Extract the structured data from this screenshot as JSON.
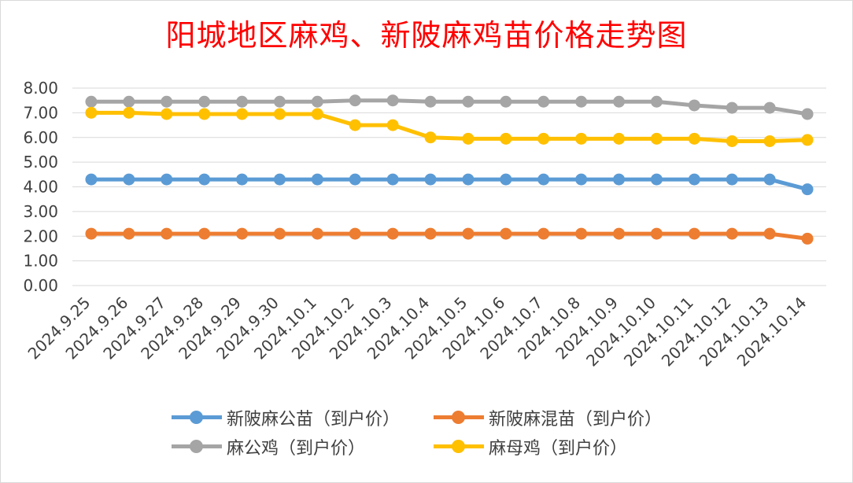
{
  "title": "阳城地区麻鸡、新陂麻鸡苗价格走势图",
  "chart_data": {
    "type": "line",
    "title": "阳城地区麻鸡、新陂麻鸡苗价格走势图",
    "xlabel": "",
    "ylabel": "",
    "ylim": [
      0,
      8
    ],
    "ytick_step": 1,
    "ytick_labels": [
      "0.00",
      "1.00",
      "2.00",
      "3.00",
      "4.00",
      "5.00",
      "6.00",
      "7.00",
      "8.00"
    ],
    "grid": true,
    "legend_position": "bottom",
    "categories": [
      "2024.9.25",
      "2024.9.26",
      "2024.9.27",
      "2024.9.28",
      "2024.9.29",
      "2024.9.30",
      "2024.10.1",
      "2024.10.2",
      "2024.10.3",
      "2024.10.4",
      "2024.10.5",
      "2024.10.6",
      "2024.10.7",
      "2024.10.8",
      "2024.10.9",
      "2024.10.10",
      "2024.10.11",
      "2024.10.12",
      "2024.10.13",
      "2024.10.14"
    ],
    "series": [
      {
        "name": "新陂麻公苗（到户价）",
        "color": "#5b9bd5",
        "values": [
          4.3,
          4.3,
          4.3,
          4.3,
          4.3,
          4.3,
          4.3,
          4.3,
          4.3,
          4.3,
          4.3,
          4.3,
          4.3,
          4.3,
          4.3,
          4.3,
          4.3,
          4.3,
          4.3,
          3.9
        ]
      },
      {
        "name": "新陂麻混苗（到户价）",
        "color": "#ed7d31",
        "values": [
          2.1,
          2.1,
          2.1,
          2.1,
          2.1,
          2.1,
          2.1,
          2.1,
          2.1,
          2.1,
          2.1,
          2.1,
          2.1,
          2.1,
          2.1,
          2.1,
          2.1,
          2.1,
          2.1,
          1.9
        ]
      },
      {
        "name": "麻公鸡（到户价）",
        "color": "#a5a5a5",
        "values": [
          7.45,
          7.45,
          7.45,
          7.45,
          7.45,
          7.45,
          7.45,
          7.5,
          7.5,
          7.45,
          7.45,
          7.45,
          7.45,
          7.45,
          7.45,
          7.45,
          7.3,
          7.2,
          7.2,
          6.95
        ]
      },
      {
        "name": "麻母鸡（到户价）",
        "color": "#ffc000",
        "values": [
          7.0,
          7.0,
          6.95,
          6.95,
          6.95,
          6.95,
          6.95,
          6.5,
          6.5,
          6.0,
          5.95,
          5.95,
          5.95,
          5.95,
          5.95,
          5.95,
          5.95,
          5.85,
          5.85,
          5.9
        ]
      }
    ]
  }
}
